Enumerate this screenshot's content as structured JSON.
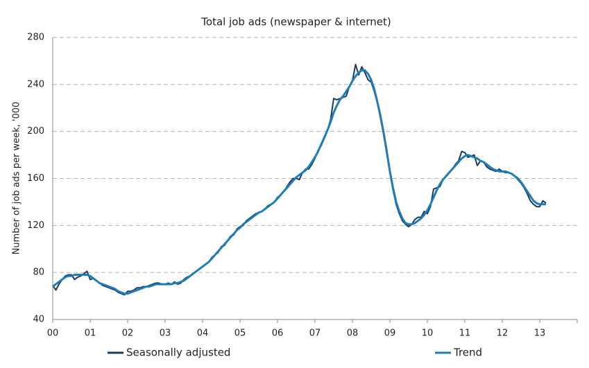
{
  "chart_data": {
    "type": "line",
    "title": "Total job ads (newspaper & internet)",
    "y_label": "Number of job ads per week, '000",
    "categories": [
      "00",
      null,
      null,
      null,
      null,
      null,
      null,
      null,
      null,
      null,
      null,
      null,
      "01",
      null,
      null,
      null,
      null,
      null,
      null,
      null,
      null,
      null,
      null,
      null,
      "02",
      null,
      null,
      null,
      null,
      null,
      null,
      null,
      null,
      null,
      null,
      null,
      "03",
      null,
      null,
      null,
      null,
      null,
      null,
      null,
      null,
      null,
      null,
      null,
      "04",
      null,
      null,
      null,
      null,
      null,
      null,
      null,
      null,
      null,
      null,
      null,
      "05",
      null,
      null,
      null,
      null,
      null,
      null,
      null,
      null,
      null,
      null,
      null,
      "06",
      null,
      null,
      null,
      null,
      null,
      null,
      null,
      null,
      null,
      null,
      null,
      "07",
      null,
      null,
      null,
      null,
      null,
      null,
      null,
      null,
      null,
      null,
      null,
      "08",
      null,
      null,
      null,
      null,
      null,
      null,
      null,
      null,
      null,
      null,
      null,
      "09",
      null,
      null,
      null,
      null,
      null,
      null,
      null,
      null,
      null,
      null,
      null,
      "10",
      null,
      null,
      null,
      null,
      null,
      null,
      null,
      null,
      null,
      null,
      null,
      "11",
      null,
      null,
      null,
      null,
      null,
      null,
      null,
      null,
      null,
      null,
      null,
      "12",
      null,
      null,
      null,
      null,
      null,
      null,
      null,
      null,
      null,
      null,
      null,
      "13",
      null,
      null,
      null,
      null,
      null,
      null,
      null,
      null,
      null,
      null,
      null
    ],
    "series": [
      {
        "name": "Seasonally adjusted",
        "color": "#173a5e",
        "width": 2,
        "values": [
          69,
          65,
          70,
          74,
          77,
          78,
          78,
          74,
          76,
          77,
          79,
          81,
          74,
          75,
          73,
          71,
          69,
          68,
          67,
          66,
          65,
          63,
          62,
          61,
          64,
          64,
          65,
          67,
          67,
          68,
          68,
          69,
          70,
          71,
          71,
          70,
          70,
          71,
          70,
          72,
          70,
          71,
          74,
          76,
          77,
          79,
          81,
          83,
          85,
          87,
          89,
          93,
          95,
          97,
          102,
          103,
          107,
          111,
          112,
          117,
          119,
          120,
          124,
          126,
          128,
          130,
          131,
          132,
          134,
          137,
          138,
          140,
          144,
          146,
          149,
          153,
          157,
          160,
          160,
          159,
          165,
          168,
          168,
          172,
          177,
          184,
          188,
          194,
          201,
          210,
          228,
          227,
          228,
          229,
          230,
          238,
          243,
          257,
          248,
          255,
          250,
          244,
          242,
          234,
          224,
          211,
          197,
          181,
          165,
          150,
          138,
          130,
          124,
          121,
          119,
          121,
          125,
          127,
          127,
          132,
          130,
          136,
          151,
          152,
          153,
          159,
          162,
          165,
          168,
          172,
          175,
          183,
          182,
          178,
          179,
          180,
          171,
          175,
          174,
          170,
          168,
          167,
          166,
          168,
          166,
          165,
          165,
          164,
          162,
          159,
          156,
          152,
          147,
          141,
          138,
          136,
          136,
          141,
          139,
          null,
          null,
          null,
          null,
          null,
          null,
          null,
          null,
          null
        ]
      },
      {
        "name": "Trend",
        "color": "#1f7db5",
        "width": 3,
        "values": [
          68,
          70,
          72,
          74,
          76,
          77,
          77,
          78,
          78,
          78,
          78,
          78,
          77,
          75,
          73,
          71,
          70,
          69,
          68,
          67,
          66,
          64,
          63,
          62,
          62,
          63,
          64,
          65,
          66,
          67,
          68,
          68,
          69,
          70,
          70,
          70,
          70,
          70,
          70,
          71,
          71,
          72,
          73,
          75,
          77,
          79,
          81,
          83,
          85,
          87,
          89,
          92,
          95,
          98,
          101,
          104,
          107,
          110,
          113,
          116,
          118,
          121,
          123,
          125,
          127,
          129,
          131,
          132,
          134,
          136,
          138,
          140,
          143,
          146,
          149,
          152,
          155,
          158,
          161,
          163,
          165,
          167,
          170,
          174,
          178,
          183,
          189,
          195,
          201,
          208,
          216,
          222,
          227,
          230,
          234,
          238,
          243,
          247,
          250,
          252,
          252,
          249,
          244,
          236,
          225,
          213,
          199,
          183,
          166,
          152,
          140,
          132,
          126,
          122,
          121,
          121,
          122,
          124,
          126,
          129,
          133,
          138,
          144,
          150,
          155,
          159,
          162,
          165,
          168,
          171,
          174,
          177,
          179,
          180,
          179,
          178,
          177,
          175,
          174,
          172,
          170,
          168,
          167,
          166,
          166,
          166,
          165,
          164,
          162,
          160,
          157,
          153,
          149,
          145,
          141,
          139,
          138,
          138,
          138,
          null,
          null,
          null,
          null,
          null,
          null,
          null,
          null,
          null
        ]
      }
    ],
    "ylim": [
      40,
      280
    ],
    "yticks": [
      40,
      80,
      120,
      160,
      200,
      240,
      280
    ],
    "grid": true,
    "legend": "bottom"
  }
}
